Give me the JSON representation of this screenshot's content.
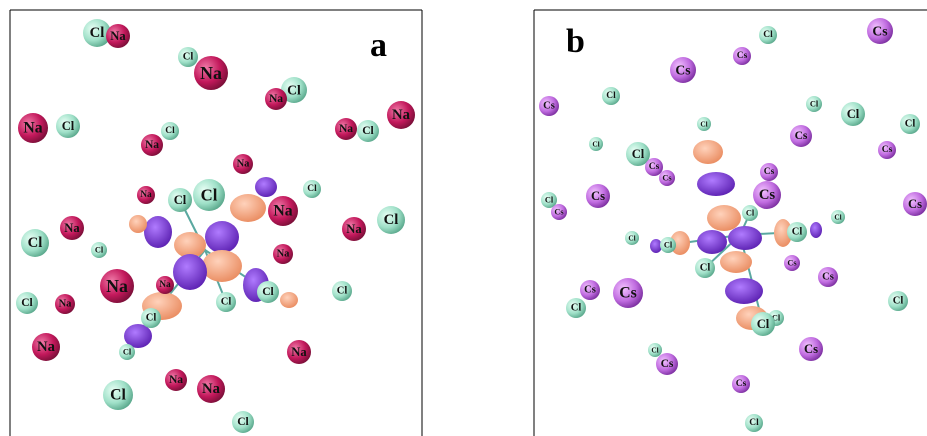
{
  "panels": [
    {
      "label": "a",
      "atoms": [
        "Cl",
        "Na",
        "Cl",
        "Na",
        "Cl",
        "Na",
        "Na",
        "Cl",
        "Na",
        "Na",
        "Cl",
        "Cl",
        "Na",
        "Na",
        "Cl",
        "Na",
        "Cl",
        "Cl",
        "Na",
        "Cl",
        "Na",
        "Na",
        "Cl",
        "Cl",
        "Na",
        "Na",
        "Na",
        "Cl",
        "Cl",
        "Na",
        "Cl",
        "Cl",
        "Cl",
        "Na",
        "Na",
        "Cl",
        "Cl",
        "Na",
        "Na",
        "Cl"
      ]
    },
    {
      "label": "b",
      "atoms": [
        "Cs",
        "Cl",
        "Cs",
        "Cs",
        "Cl",
        "Cs",
        "Cl",
        "Cl",
        "Cl",
        "Cl",
        "Cs",
        "Cl",
        "Cs",
        "Cl",
        "Cs",
        "Cs",
        "Cs",
        "Cs",
        "Cs",
        "Cl",
        "Cs",
        "Cs",
        "Cl",
        "Cl",
        "Cl",
        "Cl",
        "Cl",
        "Cl",
        "Cs",
        "Cs",
        "Cs",
        "Cs",
        "Cl",
        "Cl",
        "Cl",
        "Cl",
        "Cs",
        "Cl",
        "Cs",
        "Cs",
        "Cl"
      ]
    }
  ]
}
